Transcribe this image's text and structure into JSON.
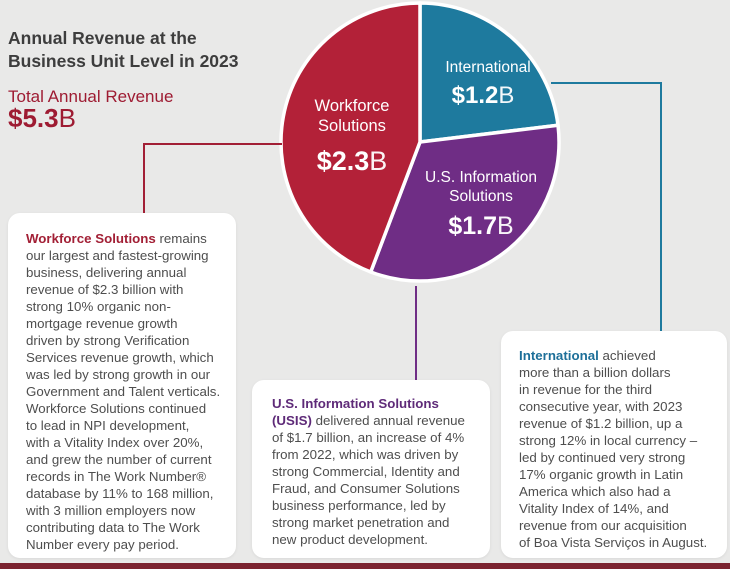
{
  "header": {
    "title": "Annual Revenue at the\nBusiness Unit Level in 2023",
    "total_label": "Total Annual Revenue",
    "total_amount": "$5.3",
    "total_suffix": "B"
  },
  "chart_data": {
    "type": "pie",
    "title": "Annual Revenue at the Business Unit Level in 2023",
    "total_label": "Total Annual Revenue",
    "total_value_billion": 5.3,
    "start_angle_deg": 0,
    "direction": "clockwise",
    "slices": [
      {
        "name": "International",
        "value": 1.2,
        "display_amount": "$1.2",
        "display_suffix": "B",
        "color": "#1e7a9e"
      },
      {
        "name": "U.S. Information Solutions",
        "value": 1.7,
        "display_amount": "$1.7",
        "display_suffix": "B",
        "color": "#6f2d85"
      },
      {
        "name": "Workforce Solutions",
        "value": 2.3,
        "display_amount": "$2.3",
        "display_suffix": "B",
        "color": "#b32138"
      }
    ]
  },
  "callouts": [
    {
      "lead": "Workforce Solutions",
      "lead_color": "#a21f35",
      "rest": " remains\nour largest and fastest-growing\nbusiness, delivering annual\nrevenue of $2.3 billion with\nstrong 10% organic non-\nmortgage revenue growth\ndriven by strong Verification\nServices revenue growth, which\nwas led by strong growth in our\nGovernment and Talent verticals.\nWorkforce Solutions continued\nto lead in NPI development,\nwith a Vitality Index over 20%,\nand grew the number of current\nrecords in The Work Number®\ndatabase by 11% to 168 million,\nwith 3 million employers now\ncontributing data to The Work\nNumber every pay period."
    },
    {
      "lead": "U.S. Information Solutions\n(USIS)",
      "lead_color": "#5e2a78",
      "rest": " delivered annual revenue\nof $1.7 billion, an increase of 4%\nfrom 2022, which was driven by\nstrong Commercial, Identity and\nFraud, and Consumer Solutions\nbusiness performance, led by\nstrong market penetration and\nnew product development."
    },
    {
      "lead": "International",
      "lead_color": "#1d6f99",
      "rest": " achieved\nmore than a billion dollars\nin revenue for the third\nconsecutive year, with 2023\nrevenue of $1.2 billion, up a\nstrong 12% in local currency –\nled by continued very strong\n17% organic growth in Latin\nAmerica which also had a\nVitality Index of 14%, and\nrevenue from our acquisition\nof Boa Vista Serviços in August."
    }
  ],
  "colors": {
    "background": "#e9e9e8",
    "crimson": "#a21f35",
    "teal": "#1e7a9e",
    "purple": "#6f2d85",
    "header_text": "#3d3d3d",
    "body_text": "#4e4e4e",
    "accent_total": "#9e1b32",
    "bottom_bar": "#7b2330"
  }
}
